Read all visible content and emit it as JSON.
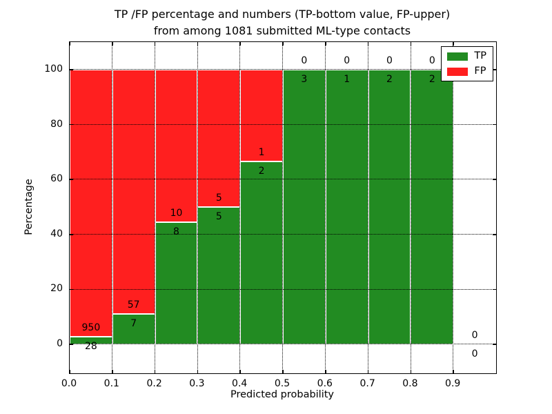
{
  "chart_data": {
    "type": "bar",
    "stacking": "percent",
    "title_line1": "TP /FP percentage and numbers (TP-bottom value, FP-upper)",
    "title_line2": "from among 1081 submitted ML-type contacts",
    "xlabel": "Predicted probability",
    "ylabel": "Percentage",
    "total_contacts": 1081,
    "xlim": [
      0.0,
      1.0
    ],
    "ylim": [
      -10.5,
      110.5
    ],
    "grid": "dotted",
    "x_tick_values": [
      0.0,
      0.1,
      0.2,
      0.3,
      0.4,
      0.5,
      0.6,
      0.7,
      0.8,
      0.9
    ],
    "x_tick_labels": [
      "0.0",
      "0.1",
      "0.2",
      "0.3",
      "0.4",
      "0.5",
      "0.6",
      "0.7",
      "0.8",
      "0.9"
    ],
    "y_ticks": [
      0,
      20,
      40,
      60,
      80,
      100
    ],
    "legend": {
      "position": "upper-right",
      "items": [
        {
          "label": "TP",
          "color": "#228b22"
        },
        {
          "label": "FP",
          "color": "#ff1f1f"
        }
      ]
    },
    "colors": {
      "tp": "#228b22",
      "fp": "#ff1f1f",
      "bar_edge": "#ffffff",
      "grid": "#000000",
      "background": "#ffffff"
    },
    "bins": [
      {
        "x0": 0.0,
        "x1": 0.1,
        "tp": 28,
        "fp": 950
      },
      {
        "x0": 0.1,
        "x1": 0.2,
        "tp": 7,
        "fp": 57
      },
      {
        "x0": 0.2,
        "x1": 0.3,
        "tp": 8,
        "fp": 10
      },
      {
        "x0": 0.3,
        "x1": 0.4,
        "tp": 5,
        "fp": 5
      },
      {
        "x0": 0.4,
        "x1": 0.5,
        "tp": 2,
        "fp": 1
      },
      {
        "x0": 0.5,
        "x1": 0.6,
        "tp": 3,
        "fp": 0
      },
      {
        "x0": 0.6,
        "x1": 0.7,
        "tp": 1,
        "fp": 0
      },
      {
        "x0": 0.7,
        "x1": 0.8,
        "tp": 2,
        "fp": 0
      },
      {
        "x0": 0.8,
        "x1": 0.9,
        "tp": 2,
        "fp": 0
      },
      {
        "x0": 0.9,
        "x1": 1.0,
        "tp": 0,
        "fp": 0
      }
    ]
  }
}
